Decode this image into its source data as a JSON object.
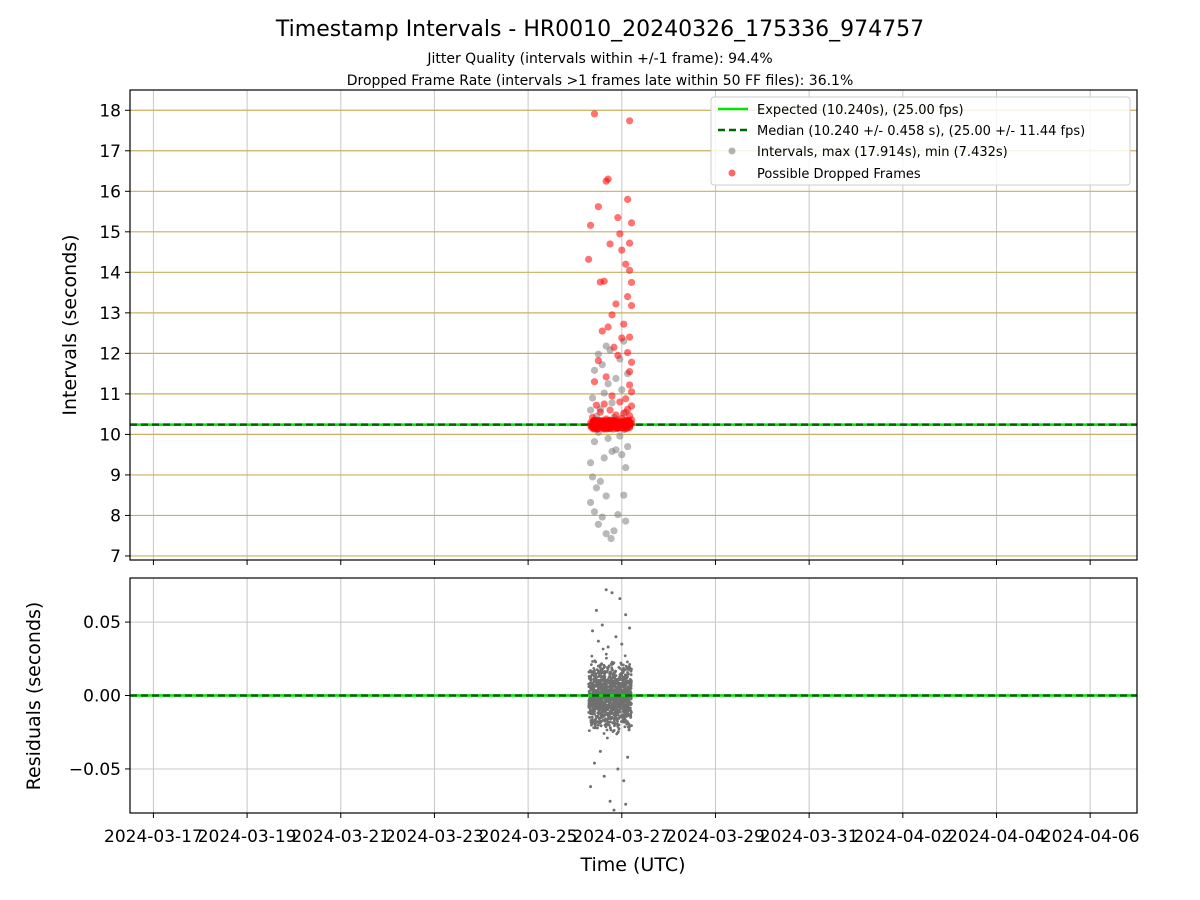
{
  "chart_data": [
    {
      "type": "scatter",
      "title": "Timestamp Intervals - HR0010_20240326_175336_974757",
      "subtitle_lines": [
        "Jitter Quality (intervals within +/-1 frame): 94.4%",
        "Dropped Frame Rate (intervals >1 frames late within 50 FF files): 36.1%"
      ],
      "ylabel": "Intervals (seconds)",
      "xlim": [
        "2024-03-16T12:00",
        "2024-04-07T00:00"
      ],
      "ylim": [
        6.9,
        18.5
      ],
      "yticks": [
        7,
        8,
        9,
        10,
        11,
        12,
        13,
        14,
        15,
        16,
        17,
        18
      ],
      "grid": true,
      "grid_color_y": "#c8b060",
      "legend_placement": "upper right",
      "legend": [
        {
          "label": "Expected (10.240s), (25.00 fps)",
          "style": "solid-line",
          "color": "#00e600"
        },
        {
          "label": "Median (10.240 +/- 0.458 s), (25.00 +/- 11.44 fps)",
          "style": "dashed-line",
          "color": "#006400"
        },
        {
          "label": "Intervals, max (17.914s), min (7.432s)",
          "style": "marker",
          "color": "#808080"
        },
        {
          "label": "Possible Dropped Frames",
          "style": "marker",
          "color": "#ff0000"
        }
      ],
      "expected": 10.24,
      "median": 10.24,
      "series": [
        {
          "name": "Intervals, max (17.914s), min (7.432s)",
          "color": "#808080",
          "points": [
            [
              "2024-03-26T18:30",
              7.43
            ],
            [
              "2024-03-26T16:00",
              7.55
            ],
            [
              "2024-03-26T20:00",
              7.62
            ],
            [
              "2024-03-26T12:00",
              7.78
            ],
            [
              "2024-03-27T02:00",
              7.86
            ],
            [
              "2024-03-26T14:00",
              7.96
            ],
            [
              "2024-03-26T22:00",
              8.02
            ],
            [
              "2024-03-26T10:00",
              8.09
            ],
            [
              "2024-03-26T08:00",
              8.32
            ],
            [
              "2024-03-26T16:00",
              8.48
            ],
            [
              "2024-03-27T01:00",
              8.5
            ],
            [
              "2024-03-26T11:00",
              8.68
            ],
            [
              "2024-03-26T13:00",
              8.84
            ],
            [
              "2024-03-26T09:00",
              8.95
            ],
            [
              "2024-03-26T08:00",
              9.3
            ],
            [
              "2024-03-27T02:00",
              9.18
            ],
            [
              "2024-03-26T15:00",
              9.42
            ],
            [
              "2024-03-27T00:00",
              9.5
            ],
            [
              "2024-03-26T19:00",
              9.58
            ],
            [
              "2024-03-26T21:00",
              9.62
            ],
            [
              "2024-03-27T03:00",
              9.7
            ],
            [
              "2024-03-26T10:00",
              9.82
            ],
            [
              "2024-03-26T17:00",
              9.9
            ],
            [
              "2024-03-26T23:00",
              9.96
            ],
            [
              "2024-03-26T12:00",
              10.05
            ],
            [
              "2024-03-27T01:00",
              10.12
            ],
            [
              "2024-03-26T14:00",
              10.18
            ],
            [
              "2024-03-26T20:00",
              10.22
            ],
            [
              "2024-03-26T16:00",
              10.25
            ],
            [
              "2024-03-26T18:00",
              10.3
            ],
            [
              "2024-03-26T22:00",
              10.36
            ],
            [
              "2024-03-26T11:00",
              10.45
            ],
            [
              "2024-03-27T02:00",
              10.55
            ],
            [
              "2024-03-26T13:00",
              10.62
            ],
            [
              "2024-03-26T19:00",
              10.78
            ],
            [
              "2024-03-26T09:00",
              10.9
            ],
            [
              "2024-03-26T15:00",
              11.02
            ],
            [
              "2024-03-27T00:00",
              11.1
            ],
            [
              "2024-03-26T17:00",
              11.25
            ],
            [
              "2024-03-26T21:00",
              11.38
            ],
            [
              "2024-03-27T03:00",
              11.5
            ],
            [
              "2024-03-26T10:00",
              11.58
            ],
            [
              "2024-03-26T14:00",
              11.72
            ],
            [
              "2024-03-26T23:00",
              11.86
            ],
            [
              "2024-03-26T12:00",
              11.98
            ],
            [
              "2024-03-26T18:00",
              12.08
            ],
            [
              "2024-03-26T16:00",
              12.18
            ],
            [
              "2024-03-27T01:00",
              12.3
            ],
            [
              "2024-03-26T20:00",
              10.42
            ],
            [
              "2024-03-26T08:00",
              10.6
            ]
          ]
        },
        {
          "name": "Possible Dropped Frames",
          "color": "#ff0000",
          "points": [
            [
              "2024-03-26T10:00",
              17.91
            ],
            [
              "2024-03-27T04:00",
              17.74
            ],
            [
              "2024-03-26T17:00",
              16.3
            ],
            [
              "2024-03-26T16:00",
              16.25
            ],
            [
              "2024-03-27T03:00",
              15.8
            ],
            [
              "2024-03-26T12:00",
              15.62
            ],
            [
              "2024-03-26T22:00",
              15.35
            ],
            [
              "2024-03-27T05:00",
              15.22
            ],
            [
              "2024-03-26T08:00",
              15.16
            ],
            [
              "2024-03-26T23:00",
              14.95
            ],
            [
              "2024-03-26T18:00",
              14.7
            ],
            [
              "2024-03-27T04:00",
              14.72
            ],
            [
              "2024-03-27T00:00",
              14.55
            ],
            [
              "2024-03-26T07:00",
              14.32
            ],
            [
              "2024-03-27T02:00",
              14.2
            ],
            [
              "2024-03-27T04:00",
              14.05
            ],
            [
              "2024-03-26T15:00",
              13.78
            ],
            [
              "2024-03-26T13:00",
              13.76
            ],
            [
              "2024-03-27T05:00",
              13.75
            ],
            [
              "2024-03-27T03:00",
              13.4
            ],
            [
              "2024-03-26T21:00",
              13.22
            ],
            [
              "2024-03-27T05:00",
              13.18
            ],
            [
              "2024-03-26T19:00",
              12.95
            ],
            [
              "2024-03-27T01:00",
              12.72
            ],
            [
              "2024-03-26T17:00",
              12.65
            ],
            [
              "2024-03-26T14:00",
              12.55
            ],
            [
              "2024-03-27T04:00",
              12.4
            ],
            [
              "2024-03-27T00:00",
              12.38
            ],
            [
              "2024-03-26T20:00",
              12.15
            ],
            [
              "2024-03-27T03:00",
              12.02
            ],
            [
              "2024-03-26T22:00",
              11.95
            ],
            [
              "2024-03-26T12:00",
              11.82
            ],
            [
              "2024-03-27T05:00",
              11.78
            ],
            [
              "2024-03-27T04:00",
              11.55
            ],
            [
              "2024-03-26T16:00",
              11.42
            ],
            [
              "2024-03-26T10:00",
              11.3
            ],
            [
              "2024-03-27T04:00",
              11.22
            ],
            [
              "2024-03-27T05:00",
              11.05
            ],
            [
              "2024-03-26T19:00",
              10.95
            ],
            [
              "2024-03-27T02:00",
              10.88
            ],
            [
              "2024-03-26T23:00",
              10.8
            ],
            [
              "2024-03-26T15:00",
              10.75
            ],
            [
              "2024-03-27T05:00",
              10.7
            ],
            [
              "2024-03-26T11:00",
              10.72
            ],
            [
              "2024-03-27T03:00",
              10.62
            ],
            [
              "2024-03-26T18:00",
              10.6
            ],
            [
              "2024-03-26T13:00",
              10.55
            ],
            [
              "2024-03-27T01:00",
              10.52
            ],
            [
              "2024-03-26T21:00",
              10.48
            ],
            [
              "2024-03-27T04:00",
              10.46
            ],
            [
              "2024-03-26T09:00",
              10.42
            ],
            [
              "2024-03-27T00:00",
              10.4
            ],
            [
              "2024-03-26T16:00",
              10.38
            ],
            [
              "2024-03-27T05:00",
              10.36
            ],
            [
              "2024-03-26T12:00",
              10.34
            ],
            [
              "2024-03-27T02:00",
              10.33
            ],
            [
              "2024-03-26T20:00",
              10.32
            ],
            [
              "2024-03-26T14:00",
              10.31
            ],
            [
              "2024-03-27T04:00",
              10.3
            ],
            [
              "2024-03-26T17:00",
              10.3
            ],
            [
              "2024-03-26T10:00",
              10.29
            ],
            [
              "2024-03-27T03:00",
              10.29
            ],
            [
              "2024-03-26T22:00",
              10.28
            ],
            [
              "2024-03-26T19:00",
              10.28
            ],
            [
              "2024-03-27T05:00",
              10.27
            ],
            [
              "2024-03-26T15:00",
              10.27
            ],
            [
              "2024-03-27T01:00",
              10.26
            ],
            [
              "2024-03-26T11:00",
              10.26
            ]
          ]
        }
      ]
    },
    {
      "type": "scatter",
      "title": "",
      "xlabel": "Time (UTC)",
      "ylabel": "Residuals (seconds)",
      "xlim": [
        "2024-03-16T12:00",
        "2024-04-07T00:00"
      ],
      "ylim": [
        -0.08,
        0.08
      ],
      "yticks": [
        0.05,
        0.0,
        -0.05
      ],
      "ytick_labels": [
        "0.05",
        "0.00",
        "−0.05"
      ],
      "xticks": [
        "2024-03-17",
        "2024-03-19",
        "2024-03-21",
        "2024-03-23",
        "2024-03-25",
        "2024-03-27",
        "2024-03-29",
        "2024-03-31",
        "2024-04-02",
        "2024-04-04",
        "2024-04-06"
      ],
      "grid": true,
      "expected": 0.0,
      "median": 0.0,
      "series": [
        {
          "name": "",
          "color": "#707070",
          "x_range": [
            "2024-03-26T07:00",
            "2024-03-27T05:00"
          ],
          "points": [
            [
              "2024-03-26T16:00",
              0.072
            ],
            [
              "2024-03-26T19:00",
              0.07
            ],
            [
              "2024-03-26T23:00",
              0.066
            ],
            [
              "2024-03-26T11:00",
              0.058
            ],
            [
              "2024-03-27T02:00",
              0.055
            ],
            [
              "2024-03-26T14:00",
              0.048
            ],
            [
              "2024-03-27T04:00",
              0.046
            ],
            [
              "2024-03-26T09:00",
              0.044
            ],
            [
              "2024-03-26T21:00",
              0.04
            ],
            [
              "2024-03-26T12:00",
              0.037
            ],
            [
              "2024-03-27T00:00",
              0.035
            ],
            [
              "2024-03-26T17:00",
              0.033
            ],
            [
              "2024-03-26T13:00",
              -0.038
            ],
            [
              "2024-03-27T03:00",
              -0.042
            ],
            [
              "2024-03-26T10:00",
              -0.046
            ],
            [
              "2024-03-26T22:00",
              -0.05
            ],
            [
              "2024-03-26T15:00",
              -0.055
            ],
            [
              "2024-03-27T01:00",
              -0.058
            ],
            [
              "2024-03-26T08:00",
              -0.062
            ],
            [
              "2024-03-26T18:00",
              -0.072
            ],
            [
              "2024-03-27T02:00",
              -0.074
            ],
            [
              "2024-03-26T20:00",
              -0.078
            ]
          ]
        }
      ]
    }
  ]
}
